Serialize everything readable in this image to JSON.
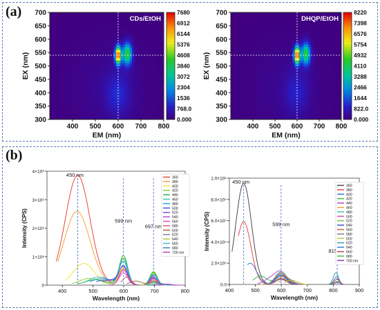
{
  "panels": {
    "a_label": "(a)",
    "b_label": "(b)"
  },
  "chart_data": [
    {
      "type": "heatmap",
      "panel": "(a)",
      "title": "CDs/EtOH",
      "xlabel": "EM (nm)",
      "ylabel": "EX (nm)",
      "xlim": [
        300,
        800
      ],
      "ylim": [
        300,
        700
      ],
      "xticks": [
        "400",
        "500",
        "600",
        "700",
        "800"
      ],
      "yticks": [
        "300",
        "350",
        "400",
        "450",
        "500",
        "550",
        "600",
        "650",
        "700"
      ],
      "colorbar_ticks": [
        "0.000",
        "768.0",
        "1536",
        "2304",
        "3072",
        "3840",
        "4608",
        "5376",
        "6144",
        "6912",
        "7680"
      ],
      "crosshair": {
        "em": 600,
        "ex": 540
      },
      "peaks": [
        {
          "em": 600,
          "ex": 540,
          "value": 7680
        },
        {
          "em": 640,
          "ex": 545,
          "value": 4300
        },
        {
          "em": 598,
          "ex": 395,
          "value": 900
        }
      ]
    },
    {
      "type": "heatmap",
      "panel": "(a)",
      "title": "DHQP/EtOH",
      "xlabel": "EM (nm)",
      "ylabel": "EX (nm)",
      "xlim": [
        300,
        800
      ],
      "ylim": [
        300,
        700
      ],
      "xticks": [
        "400",
        "500",
        "600",
        "700",
        "800"
      ],
      "yticks": [
        "300",
        "350",
        "400",
        "450",
        "500",
        "550",
        "600",
        "650",
        "700"
      ],
      "colorbar_ticks": [
        "0.000",
        "822.0",
        "1644",
        "2466",
        "3288",
        "4110",
        "4932",
        "5754",
        "6576",
        "7398",
        "8220"
      ],
      "crosshair": {
        "em": 600,
        "ex": 540
      },
      "peaks": [
        {
          "em": 600,
          "ex": 540,
          "value": 8220
        },
        {
          "em": 640,
          "ex": 545,
          "value": 4400
        },
        {
          "em": 598,
          "ex": 400,
          "value": 800
        }
      ]
    },
    {
      "type": "line",
      "panel": "(b)",
      "xlabel": "Wavelength (nm)",
      "ylabel": "Intensity (CPS)",
      "xlim": [
        350,
        800
      ],
      "ylim": [
        0,
        4200000
      ],
      "xticks": [
        "400",
        "500",
        "600",
        "700",
        "800"
      ],
      "yticks": [
        "0",
        "1×10⁶",
        "2×10⁶",
        "3×10⁶",
        "4×10⁶"
      ],
      "annotations": [
        {
          "text": "450 nm",
          "x": 450
        },
        {
          "text": "599 nm",
          "x": 599
        },
        {
          "text": "697 nm",
          "x": 697
        }
      ],
      "legend": [
        "360",
        "380",
        "400",
        "420",
        "440",
        "460",
        "480",
        "500",
        "520",
        "540",
        "560",
        "580",
        "600",
        "620",
        "640",
        "660",
        "680",
        "700 nm"
      ],
      "series": [
        {
          "name": "360",
          "color": "#e8463a",
          "peaks": [
            [
              450,
              4050000,
              40
            ],
            [
              599,
              550000,
              15
            ],
            [
              697,
              350000,
              12
            ]
          ],
          "start": 380,
          "end": 700
        },
        {
          "name": "380",
          "color": "#f4a23a",
          "peaks": [
            [
              448,
              2720000,
              42
            ],
            [
              599,
              600000,
              15
            ],
            [
              697,
              420000,
              12
            ]
          ],
          "start": 385,
          "end": 700
        },
        {
          "name": "400",
          "color": "#f6e23a",
          "peaks": [
            [
              470,
              800000,
              35
            ],
            [
              599,
              650000,
              15
            ],
            [
              697,
              450000,
              12
            ]
          ],
          "start": 410,
          "end": 720
        },
        {
          "name": "420",
          "color": "#8bd13e",
          "peaks": [
            [
              490,
              250000,
              35
            ],
            [
              599,
              1000000,
              14
            ],
            [
              697,
              500000,
              12
            ]
          ],
          "start": 430,
          "end": 720
        },
        {
          "name": "440",
          "color": "#2fb34a",
          "peaks": [
            [
              510,
              200000,
              35
            ],
            [
              599,
              1080000,
              14
            ],
            [
              697,
              480000,
              12
            ]
          ],
          "start": 450,
          "end": 730
        },
        {
          "name": "460",
          "color": "#3fc6b4",
          "peaks": [
            [
              520,
              300000,
              35
            ],
            [
              599,
              950000,
              14
            ],
            [
              697,
              420000,
              12
            ]
          ],
          "start": 470,
          "end": 730
        },
        {
          "name": "480",
          "color": "#2fa0e0",
          "peaks": [
            [
              530,
              250000,
              35
            ],
            [
              599,
              850000,
              14
            ],
            [
              697,
              380000,
              12
            ]
          ],
          "start": 490,
          "end": 730
        },
        {
          "name": "500",
          "color": "#3a5ae0",
          "peaks": [
            [
              540,
              200000,
              30
            ],
            [
              599,
              700000,
              14
            ],
            [
              697,
              300000,
              12
            ]
          ],
          "start": 510,
          "end": 730
        },
        {
          "name": "520",
          "color": "#7a4fd8",
          "peaks": [
            [
              560,
              200000,
              30
            ],
            [
              599,
              600000,
              14
            ],
            [
              697,
              280000,
              12
            ]
          ],
          "start": 530,
          "end": 730
        },
        {
          "name": "540",
          "color": "#b34fd0",
          "peaks": [
            [
              599,
              550000,
              14
            ],
            [
              697,
              250000,
              12
            ]
          ],
          "start": 550,
          "end": 730
        },
        {
          "name": "560",
          "color": "#e04fb0",
          "peaks": [
            [
              599,
              450000,
              14
            ],
            [
              697,
              250000,
              12
            ]
          ],
          "start": 570,
          "end": 730
        },
        {
          "name": "580",
          "color": "#e05a7a",
          "peaks": [
            [
              610,
              300000,
              14
            ],
            [
              697,
              200000,
              12
            ]
          ],
          "start": 590,
          "end": 740
        },
        {
          "name": "600",
          "color": "#a06a3a",
          "peaks": [
            [
              640,
              150000,
              20
            ],
            [
              697,
              150000,
              12
            ]
          ],
          "start": 610,
          "end": 740
        },
        {
          "name": "620",
          "color": "#808080",
          "peaks": [
            [
              697,
              120000,
              12
            ]
          ],
          "start": 630,
          "end": 750
        },
        {
          "name": "640",
          "color": "#c0c040",
          "peaks": [
            [
              697,
              100000,
              12
            ]
          ],
          "start": 650,
          "end": 760
        },
        {
          "name": "660",
          "color": "#40c0c0",
          "peaks": [
            [
              700,
              80000,
              12
            ]
          ],
          "start": 670,
          "end": 770
        },
        {
          "name": "680",
          "color": "#4080c0",
          "peaks": [
            [
              720,
              60000,
              15
            ]
          ],
          "start": 690,
          "end": 780
        },
        {
          "name": "700 nm",
          "color": "#c040c0",
          "peaks": [
            [
              740,
              40000,
              15
            ]
          ],
          "start": 710,
          "end": 790
        }
      ]
    },
    {
      "type": "line",
      "panel": "(b)",
      "xlabel": "Wavelength (nm)",
      "ylabel": "Intensity (CPS)",
      "xlim": [
        400,
        900
      ],
      "ylim": [
        0,
        1000000
      ],
      "xticks": [
        "400",
        "500",
        "600",
        "700",
        "800",
        "900"
      ],
      "yticks": [
        "0.0",
        "2.0×10⁵",
        "4.0×10⁵",
        "6.0×10⁵",
        "8.0×10⁵",
        "1.0×10⁶"
      ],
      "annotations": [
        {
          "text": "450 nm",
          "x": 455
        },
        {
          "text": "599 nm",
          "x": 599
        },
        {
          "text": "815 nm",
          "x": 815
        }
      ],
      "legend": [
        "360",
        "380",
        "400",
        "420",
        "440",
        "460",
        "480",
        "500",
        "520",
        "540",
        "560",
        "580",
        "600",
        "620",
        "640",
        "660",
        "680",
        "700 nm"
      ],
      "series": [
        {
          "name": "360",
          "color": "#4a4a4a",
          "peaks": [
            [
              455,
              950000,
              30
            ],
            [
              599,
              50000,
              20
            ]
          ],
          "start": 410,
          "end": 650
        },
        {
          "name": "380",
          "color": "#e8463a",
          "peaks": [
            [
              455,
              590000,
              28
            ],
            [
              599,
              60000,
              20
            ]
          ],
          "start": 435,
          "end": 650
        },
        {
          "name": "400",
          "color": "#2f7ae0",
          "peaks": [
            [
              480,
              200000,
              25
            ],
            [
              599,
              80000,
              20
            ]
          ],
          "start": 470,
          "end": 660
        },
        {
          "name": "420",
          "color": "#3fb84a",
          "peaks": [
            [
              520,
              80000,
              25
            ],
            [
              599,
              100000,
              20
            ]
          ],
          "start": 490,
          "end": 680
        },
        {
          "name": "440",
          "color": "#b34fd0",
          "peaks": [
            [
              560,
              60000,
              25
            ],
            [
              599,
              110000,
              20
            ]
          ],
          "start": 510,
          "end": 690
        },
        {
          "name": "460",
          "color": "#f0a030",
          "peaks": [
            [
              599,
              120000,
              22
            ]
          ],
          "start": 520,
          "end": 700
        },
        {
          "name": "480",
          "color": "#3fc6b4",
          "peaks": [
            [
              599,
              120000,
              22
            ]
          ],
          "start": 530,
          "end": 700
        },
        {
          "name": "500",
          "color": "#e04fb0",
          "peaks": [
            [
              599,
              110000,
              22
            ]
          ],
          "start": 540,
          "end": 700
        },
        {
          "name": "520",
          "color": "#80c040",
          "peaks": [
            [
              599,
              100000,
              22
            ]
          ],
          "start": 550,
          "end": 700
        },
        {
          "name": "540",
          "color": "#4050c0",
          "peaks": [
            [
              599,
              90000,
              22
            ]
          ],
          "start": 560,
          "end": 700
        },
        {
          "name": "560",
          "color": "#c06040",
          "peaks": [
            [
              610,
              80000,
              22
            ]
          ],
          "start": 570,
          "end": 700
        },
        {
          "name": "580",
          "color": "#808080",
          "peaks": [
            [
              620,
              60000,
              22
            ]
          ],
          "start": 590,
          "end": 700
        },
        {
          "name": "600",
          "color": "#c0c040",
          "peaks": [
            [
              640,
              40000,
              22
            ]
          ],
          "start": 610,
          "end": 700
        },
        {
          "name": "620",
          "color": "#40a0a0",
          "peaks": [
            [
              810,
              110000,
              10
            ]
          ],
          "start": 780,
          "end": 830
        },
        {
          "name": "640",
          "color": "#4080e0",
          "peaks": [
            [
              812,
              70000,
              10
            ]
          ],
          "start": 785,
          "end": 830
        },
        {
          "name": "660",
          "color": "#c04040",
          "peaks": [
            [
              814,
              50000,
              10
            ]
          ],
          "start": 790,
          "end": 835
        },
        {
          "name": "680",
          "color": "#40c040",
          "peaks": [
            [
              815,
              30000,
              10
            ]
          ],
          "start": 795,
          "end": 835
        },
        {
          "name": "700 nm",
          "color": "#8040c0",
          "peaks": [
            [
              816,
              20000,
              10
            ]
          ],
          "start": 800,
          "end": 840
        }
      ]
    }
  ]
}
